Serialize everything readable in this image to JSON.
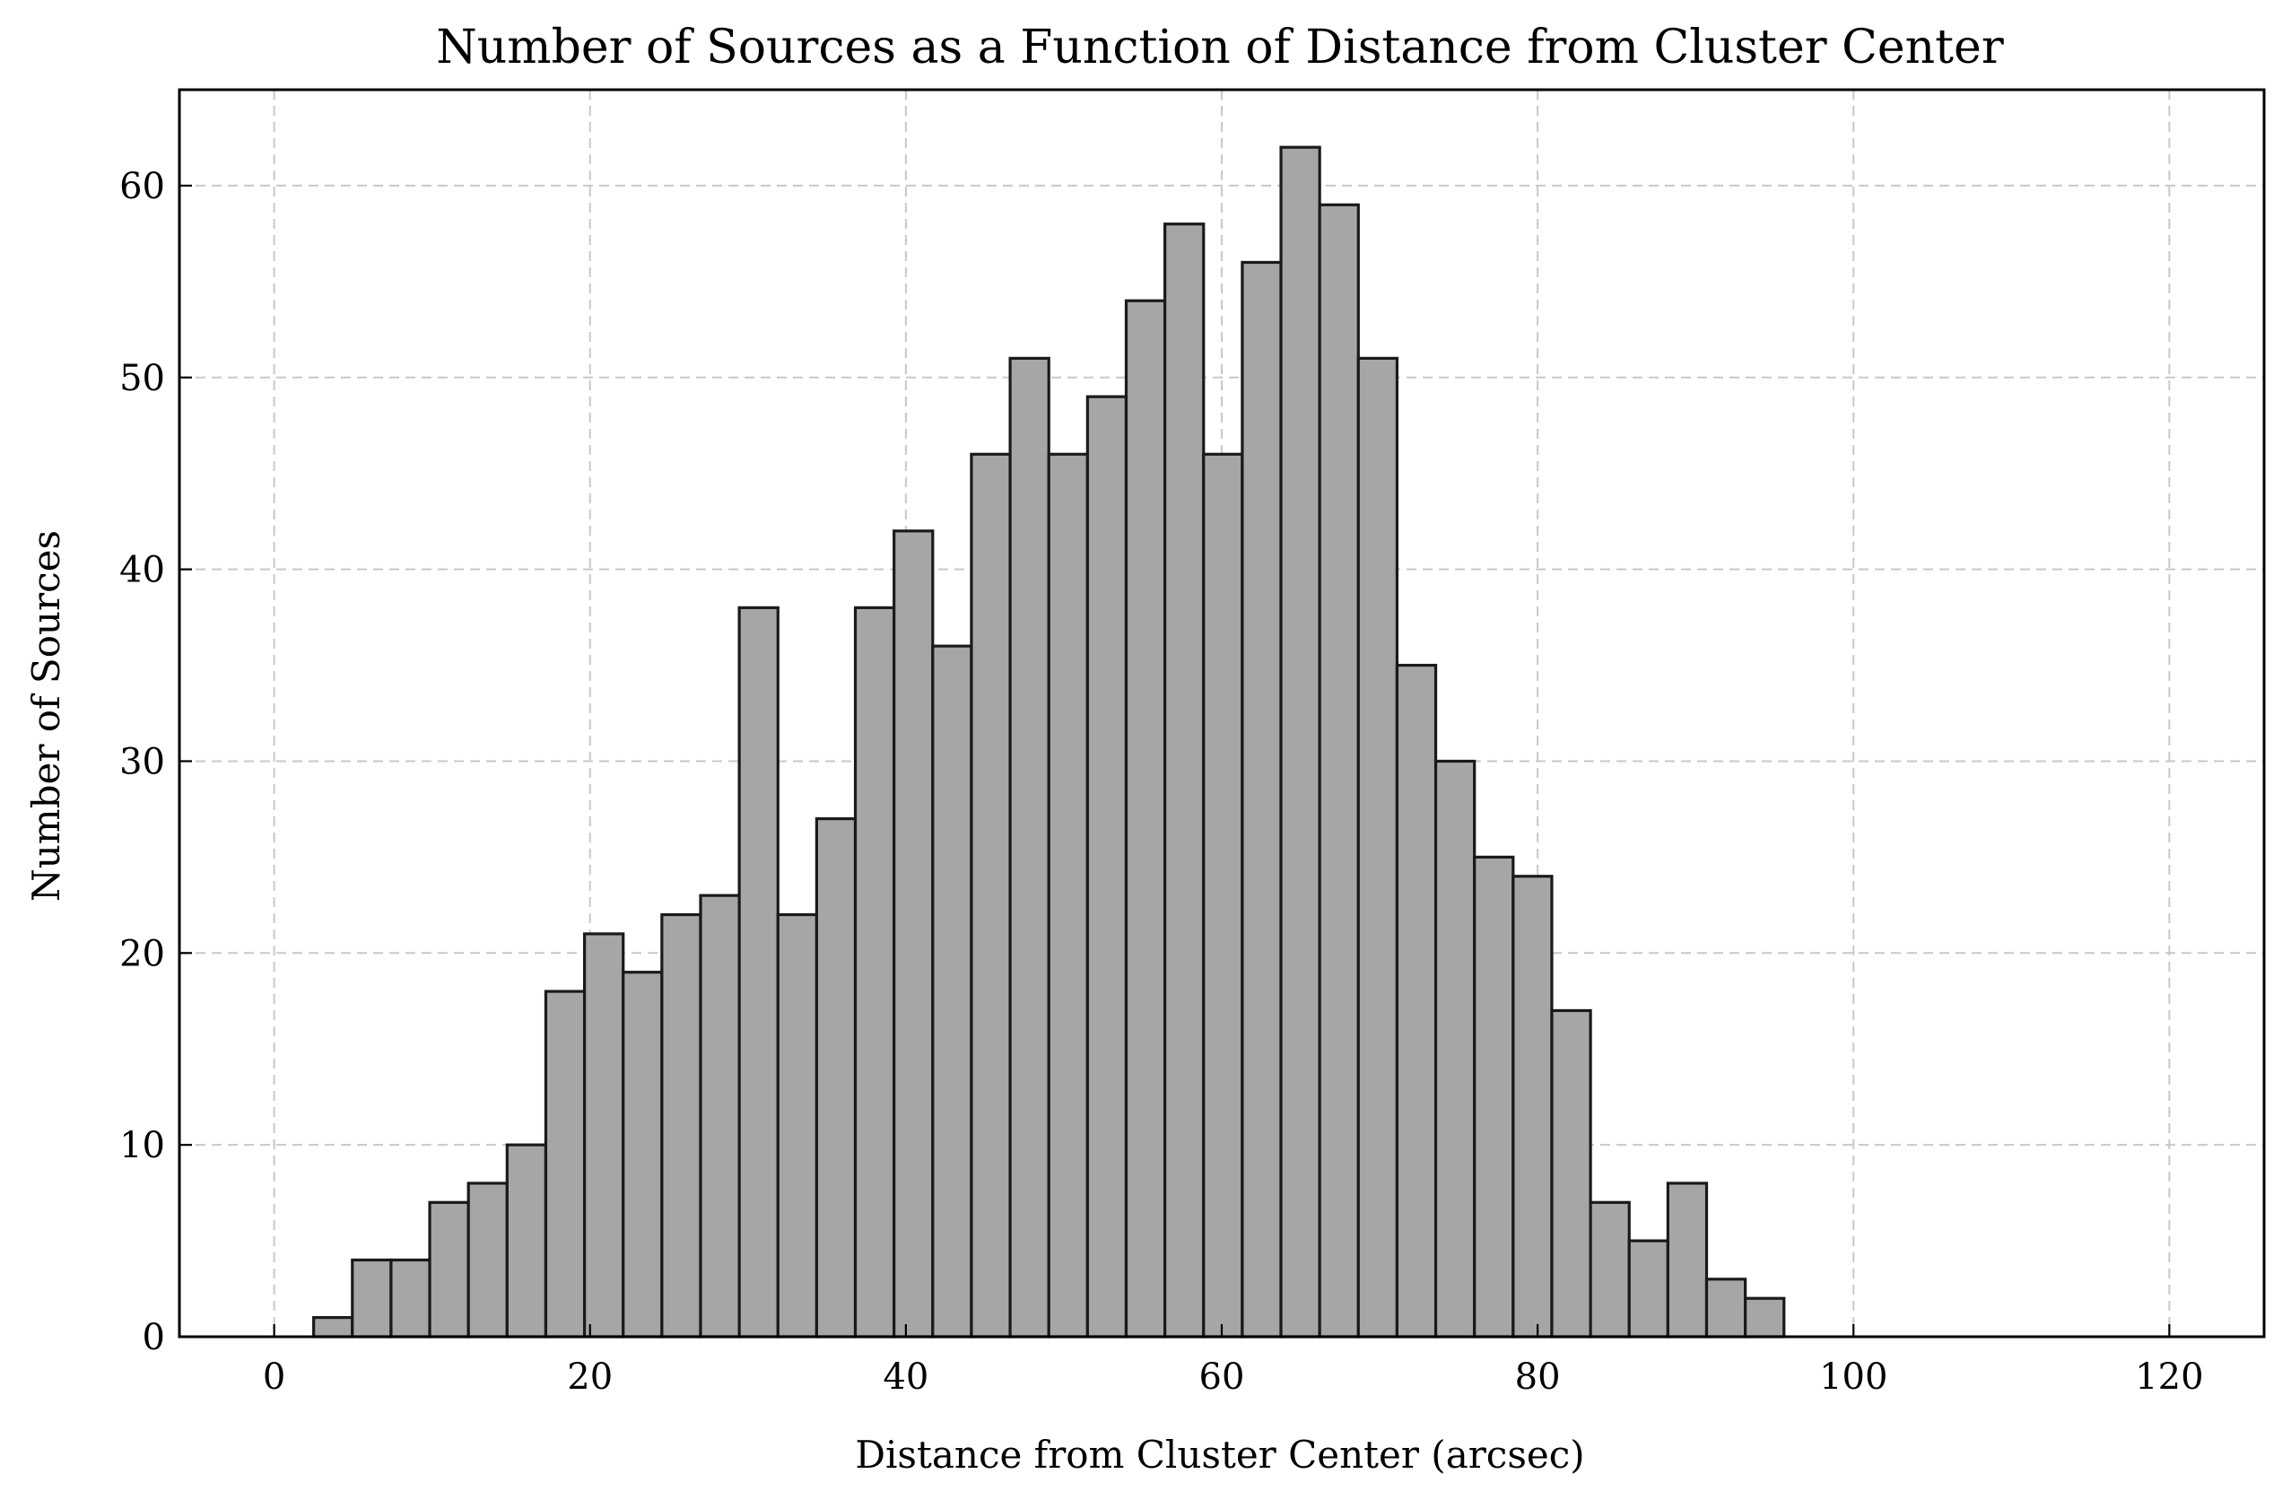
{
  "chart_data": {
    "type": "bar",
    "title": "Number of Sources as a Function of Distance from Cluster Center",
    "xlabel": "Distance from Cluster Center (arcsec)",
    "ylabel": "Number of Sources",
    "xlim": [
      -6,
      126
    ],
    "ylim": [
      0,
      65
    ],
    "xticks": [
      0,
      20,
      40,
      60,
      80,
      100,
      120
    ],
    "yticks": [
      0,
      10,
      20,
      30,
      40,
      50,
      60
    ],
    "grid": true,
    "bar_color": "#a6a6a6",
    "edge_color": "#1a1a1a",
    "bin_width": 2.45,
    "bin_edges": [
      2.5,
      4.95,
      7.4,
      9.85,
      12.3,
      14.75,
      17.2,
      19.65,
      22.1,
      24.55,
      27.0,
      29.45,
      31.9,
      34.35,
      36.8,
      39.25,
      41.7,
      44.15,
      46.6,
      49.05,
      51.5,
      53.95,
      56.4,
      58.85,
      61.3,
      63.75,
      66.2,
      68.65,
      71.1,
      73.55,
      76.0,
      78.45,
      80.9,
      83.35,
      85.8,
      88.25,
      90.7,
      93.15,
      95.6
    ],
    "values": [
      1,
      4,
      4,
      7,
      8,
      10,
      18,
      21,
      19,
      22,
      23,
      38,
      22,
      27,
      38,
      42,
      36,
      46,
      51,
      46,
      49,
      54,
      58,
      46,
      56,
      62,
      59,
      51,
      35,
      30,
      25,
      24,
      17,
      7,
      5,
      8,
      3,
      2
    ]
  }
}
